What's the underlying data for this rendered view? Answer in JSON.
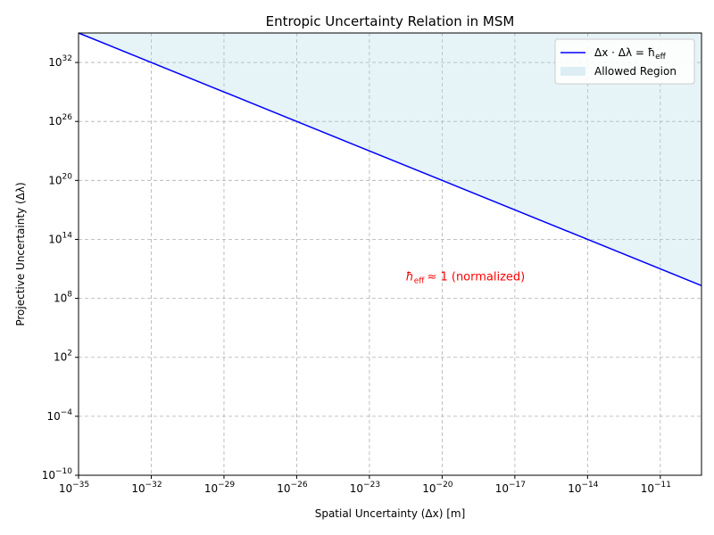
{
  "chart_data": {
    "type": "line",
    "title": "Entropic Uncertainty Relation in MSM",
    "xlabel": "Spatial Uncertainty (Δx) [m]",
    "ylabel": "Projective Uncertainty (Δλ)",
    "xscale": "log",
    "yscale": "log",
    "xlim_exp": [
      -35,
      -9.3
    ],
    "ylim_exp": [
      -10,
      35
    ],
    "grid": true,
    "x_ticks": [
      {
        "base": "10",
        "exp": "−35",
        "value_exp": -35
      },
      {
        "base": "10",
        "exp": "−32",
        "value_exp": -32
      },
      {
        "base": "10",
        "exp": "−29",
        "value_exp": -29
      },
      {
        "base": "10",
        "exp": "−26",
        "value_exp": -26
      },
      {
        "base": "10",
        "exp": "−23",
        "value_exp": -23
      },
      {
        "base": "10",
        "exp": "−20",
        "value_exp": -20
      },
      {
        "base": "10",
        "exp": "−17",
        "value_exp": -17
      },
      {
        "base": "10",
        "exp": "−14",
        "value_exp": -14
      },
      {
        "base": "10",
        "exp": "−11",
        "value_exp": -11
      }
    ],
    "y_ticks": [
      {
        "base": "10",
        "exp": "−10",
        "value_exp": -10
      },
      {
        "base": "10",
        "exp": "−4",
        "value_exp": -4
      },
      {
        "base": "10",
        "exp": "2",
        "value_exp": 2
      },
      {
        "base": "10",
        "exp": "8",
        "value_exp": 8
      },
      {
        "base": "10",
        "exp": "14",
        "value_exp": 14
      },
      {
        "base": "10",
        "exp": "20",
        "value_exp": 20
      },
      {
        "base": "10",
        "exp": "26",
        "value_exp": 26
      },
      {
        "base": "10",
        "exp": "32",
        "value_exp": 32
      }
    ],
    "series": [
      {
        "name": "Δx · Δλ = ħ_eff",
        "color": "#0000ff",
        "points_exp": [
          [
            -35,
            35
          ],
          [
            -9.3,
            9.3
          ]
        ]
      }
    ],
    "fill": {
      "name": "Allowed Region",
      "color": "#add8e6",
      "opacity": 0.3,
      "description": "above the line Δx·Δλ = ħ_eff"
    },
    "annotation": {
      "text": "≈ 1 (normalized)",
      "symbol": "ħ",
      "subscript": "eff",
      "color": "#ff0000",
      "x_exp": -21.5,
      "y_exp": 10.2
    },
    "legend": {
      "placement": "top-right",
      "entries": [
        {
          "label": "Δx · Δλ = ħ",
          "subscript": "eff",
          "kind": "line",
          "color": "#0000ff"
        },
        {
          "label": "Allowed Region",
          "kind": "patch",
          "color": "#add8e6"
        }
      ]
    }
  }
}
